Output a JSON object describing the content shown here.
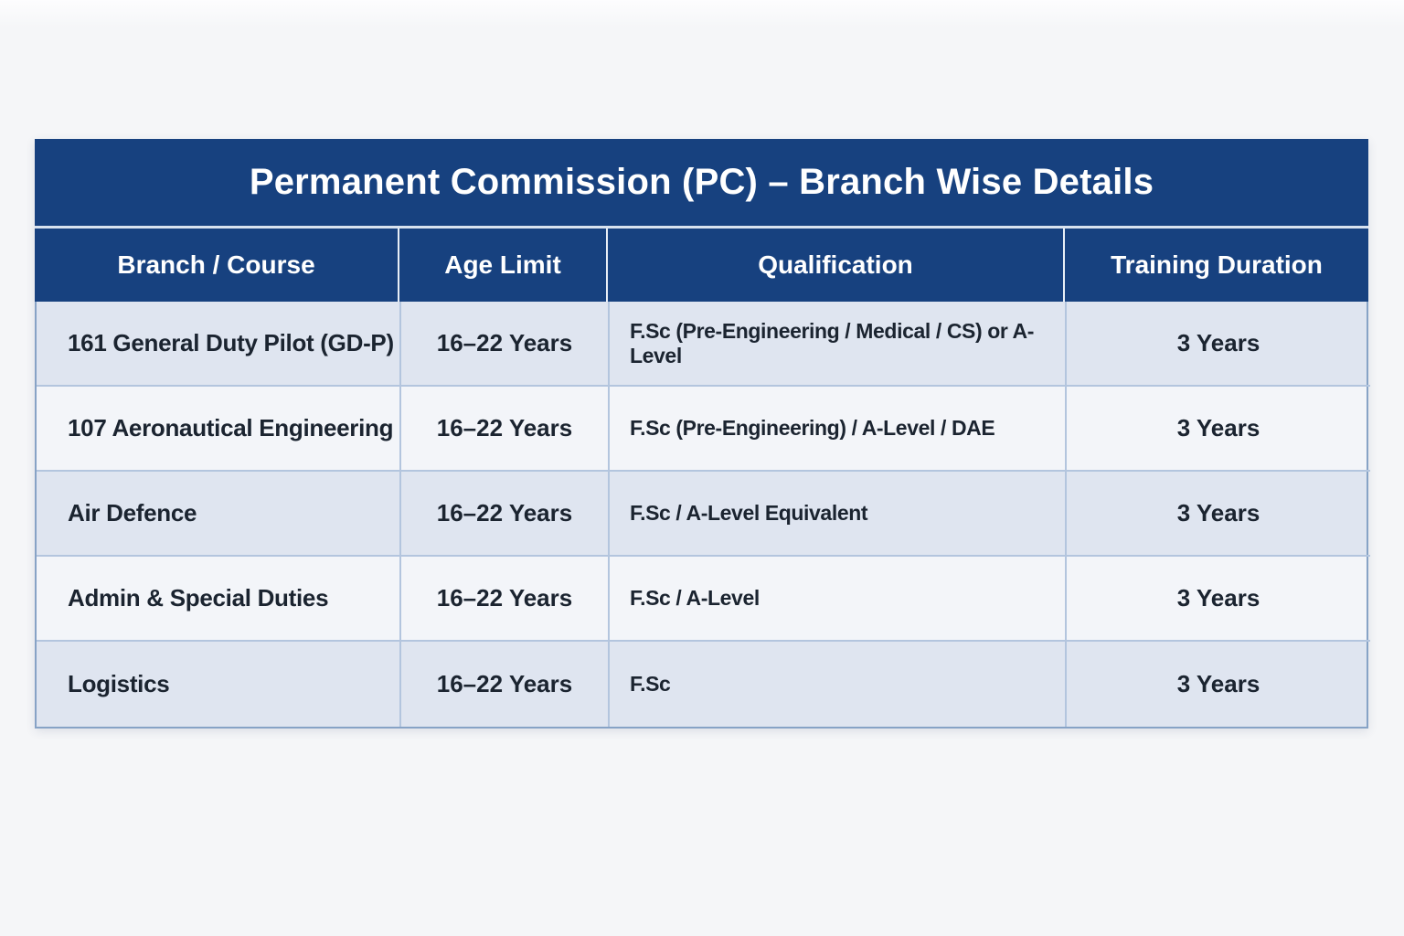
{
  "table": {
    "title": "Permanent Commission (PC) – Branch Wise Details",
    "columns": [
      "Branch / Course",
      "Age Limit",
      "Qualification",
      "Training Duration"
    ],
    "rows": [
      {
        "branch": "161 General Duty Pilot (GD-P)",
        "age_limit": "16–22 Years",
        "qualification": "F.Sc (Pre-Engineering / Medical / CS) or A-Level",
        "training_duration": "3 Years"
      },
      {
        "branch": "107 Aeronautical Engineering",
        "age_limit": "16–22 Years",
        "qualification": "F.Sc (Pre-Engineering) / A-Level / DAE",
        "training_duration": "3 Years"
      },
      {
        "branch": "Air Defence",
        "age_limit": "16–22 Years",
        "qualification": "F.Sc / A-Level Equivalent",
        "training_duration": "3 Years"
      },
      {
        "branch": "Admin & Special Duties",
        "age_limit": "16–22 Years",
        "qualification": "F.Sc / A-Level",
        "training_duration": "3 Years"
      },
      {
        "branch": "Logistics",
        "age_limit": "16–22 Years",
        "qualification": "F.Sc",
        "training_duration": "3 Years"
      }
    ],
    "colors": {
      "header_bg": "#17417f",
      "row_odd": "#dfe5f0",
      "row_even": "#f3f5f9",
      "border": "#b3c5de",
      "outer_border": "#87a3c6",
      "text": "#1b2430",
      "header_text": "#ffffff"
    }
  }
}
